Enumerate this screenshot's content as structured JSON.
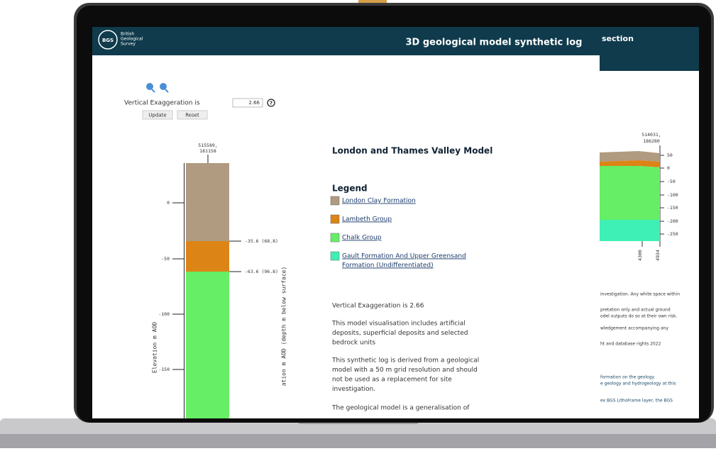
{
  "header": {
    "logo": "BGS",
    "org": [
      "British",
      "Geological",
      "Survey"
    ],
    "title": "3D geological model synthetic log",
    "section_title": "section"
  },
  "controls": {
    "ve_label": "Vertical Exaggeration is",
    "ve_value": "2.66",
    "help": "?",
    "buttons": [
      "Update",
      "Reset"
    ]
  },
  "log": {
    "coordinates": [
      "515589,",
      "181158"
    ],
    "axis_ticks": [
      "0",
      "-50",
      "-100",
      "-150"
    ],
    "boundaries": [
      "-35.6 (68.8)",
      "-63.6 (96.8)"
    ],
    "axis_title": "Elevation m AOD",
    "depth_title": "ation m AOD (depth m below surface)"
  },
  "panel": {
    "model_title": "London and Thames Valley Model",
    "legend_title": "Legend",
    "legend": [
      {
        "label": [
          "London Clay Formation"
        ],
        "color": "#b09a80"
      },
      {
        "label": [
          "Lambeth Group"
        ],
        "color": "#dc8416"
      },
      {
        "label": [
          "Chalk Group"
        ],
        "color": "#66ee66"
      },
      {
        "label": [
          "Gault Formation And Upper Greensand",
          "Formation (Undifferentiated)"
        ],
        "color": "#3ef0b5"
      }
    ],
    "paragraphs": [
      [
        "Vertical Exaggeration is 2.66"
      ],
      [
        "This model visualisation includes artificial",
        "deposits, superficial deposits and selected",
        "bedrock units"
      ],
      [
        "This synthetic log is derived from a geological",
        "model with a 50 m grid resolution and should",
        "not be used as a replacement for site",
        "investigation."
      ],
      [
        "The geological model is a generalisation of"
      ]
    ]
  },
  "section": {
    "coordinates": [
      "514031,",
      "186280"
    ],
    "axis_ticks": [
      "50",
      "0",
      "-50",
      "-100",
      "-150",
      "-200",
      "-250"
    ],
    "bottom_labels": [
      "4300",
      "4934"
    ],
    "notes": [
      "investigation. Any white space within",
      "pretation only and actual ground",
      "odel outputs do so at their own risk.",
      "wledgement accompanying any",
      "ht and database rights 2022",
      "formation on the geology.",
      "e geology and hydrogeology at this",
      "ex BGS LithoFrame layer, the BGS"
    ]
  }
}
